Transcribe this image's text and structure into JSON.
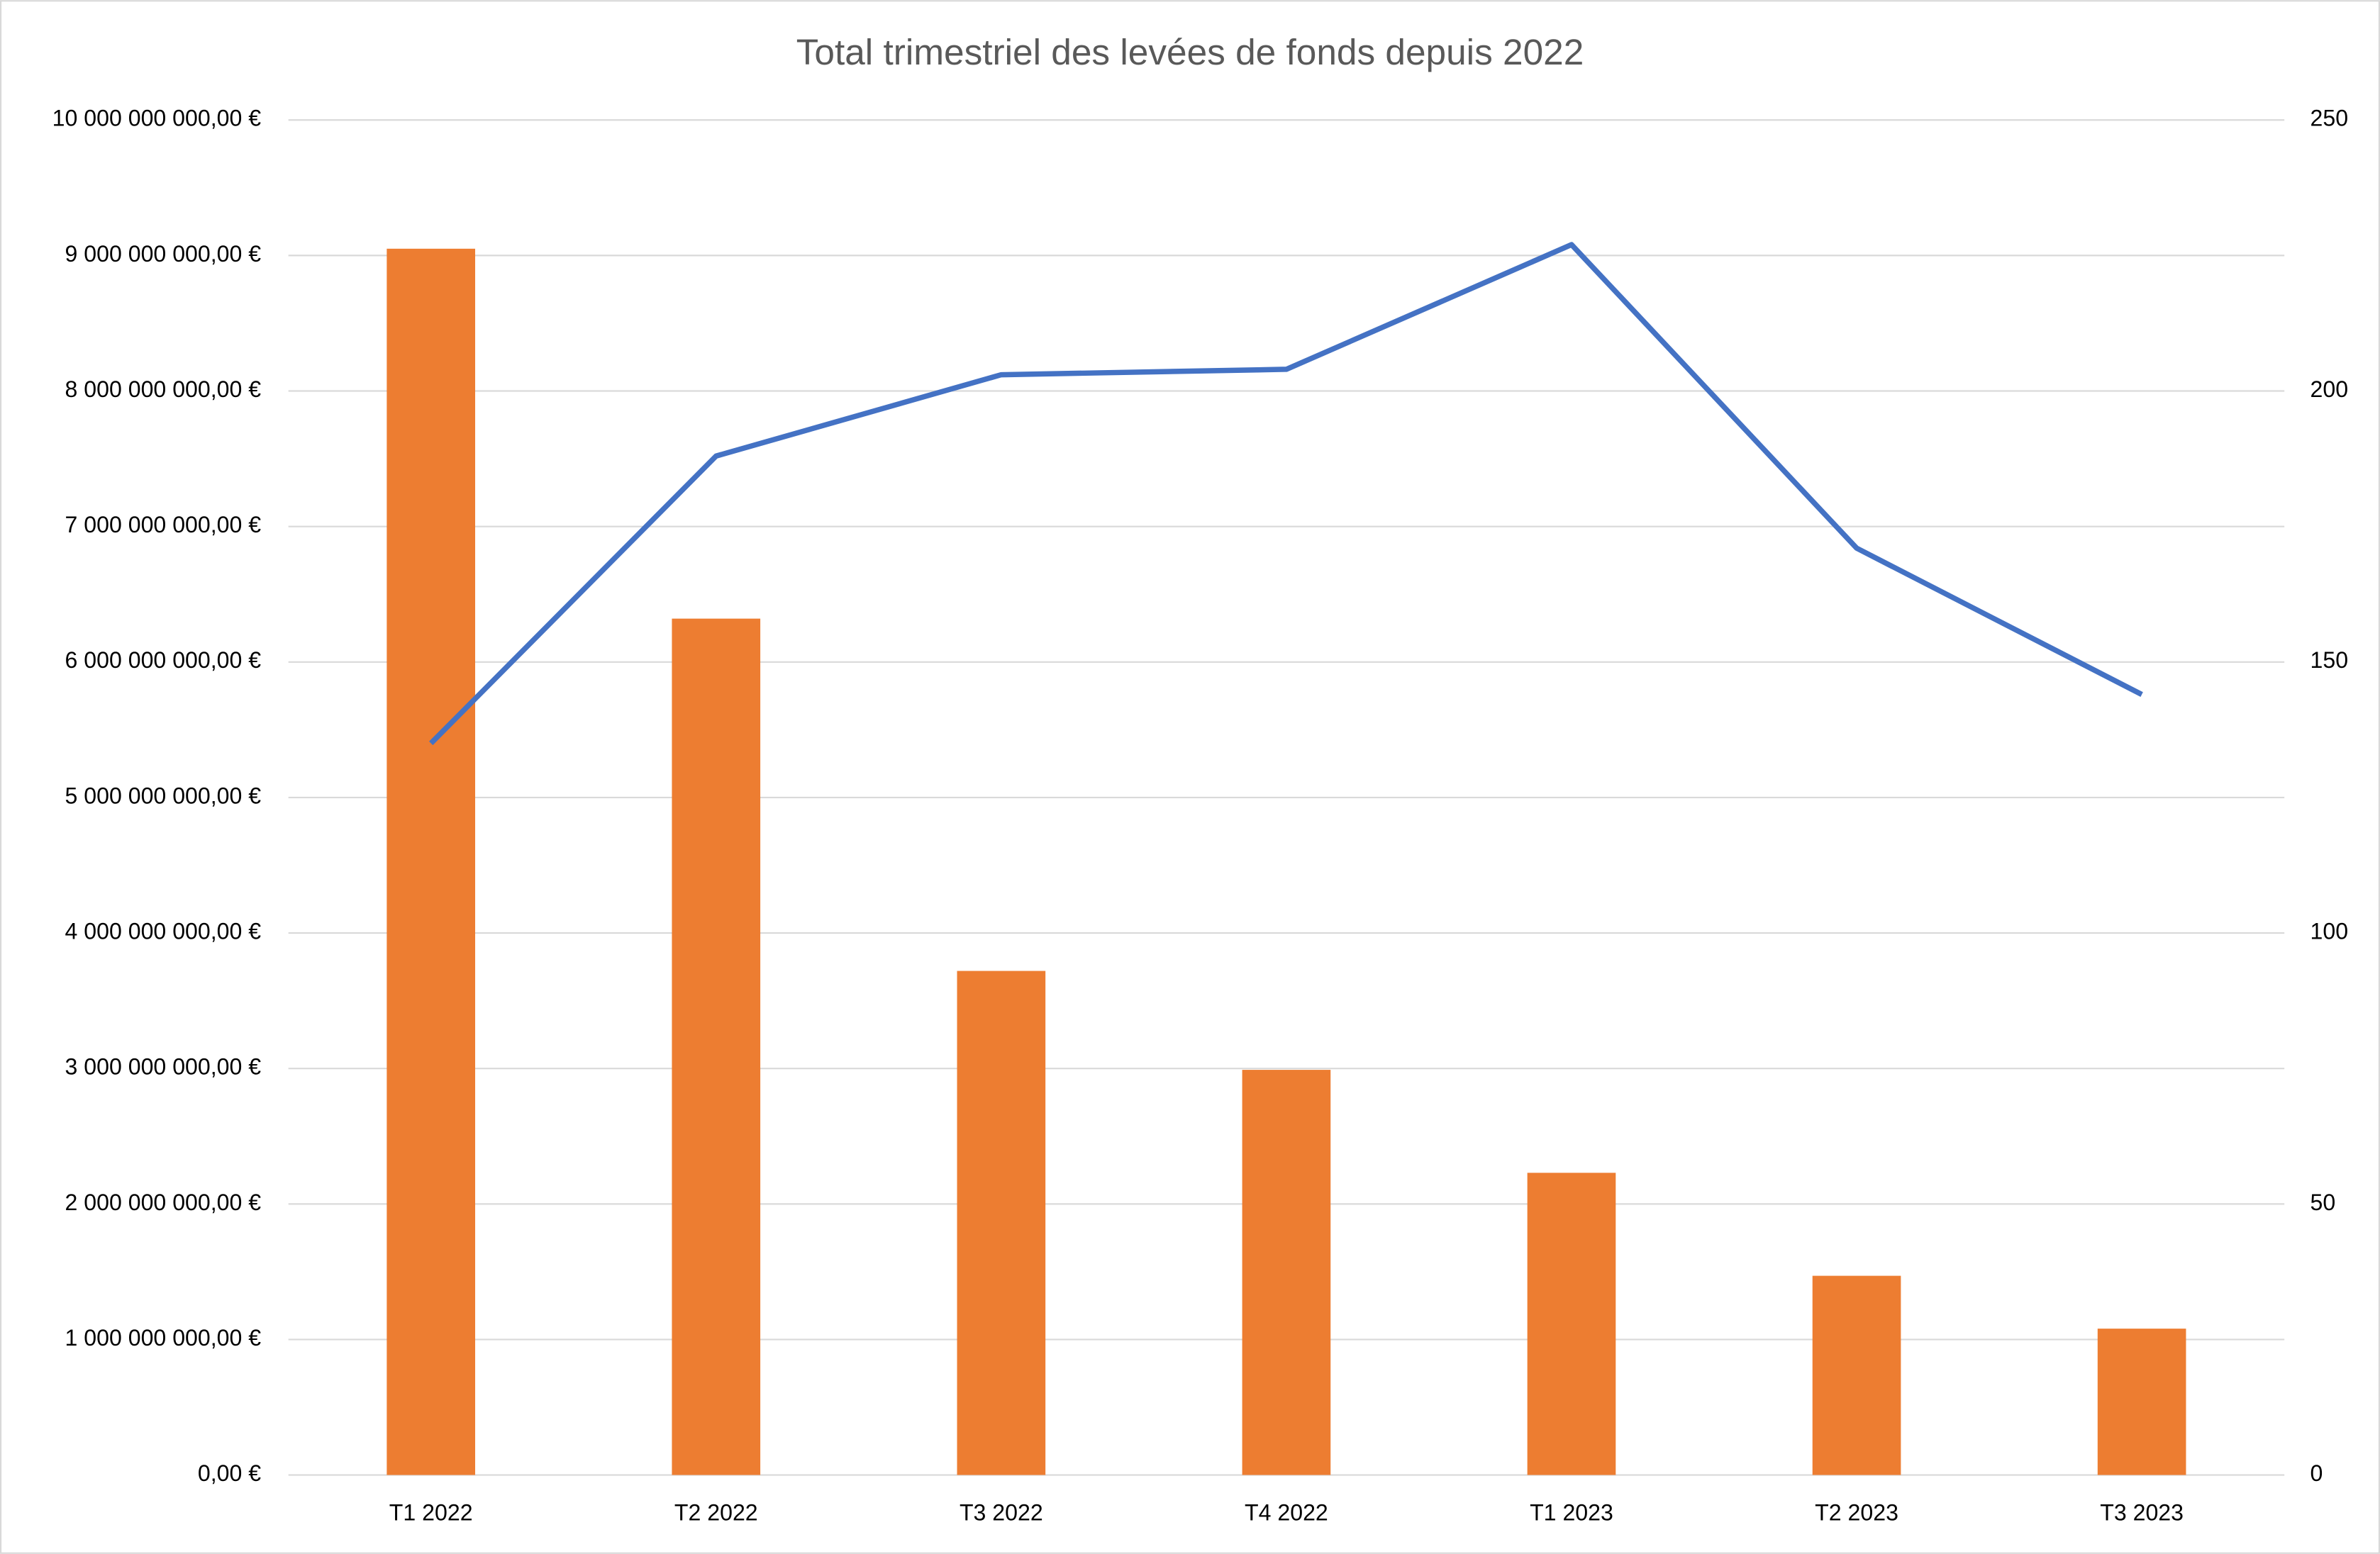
{
  "chart_data": {
    "type": "combo",
    "title": "Total trimestriel des levées de fonds depuis 2022",
    "categories": [
      "T1 2022",
      "T2 2022",
      "T3 2022",
      "T4 2022",
      "T1 2023",
      "T2 2023",
      "T3 2023"
    ],
    "series": [
      {
        "type": "bar",
        "color": "#ed7d31",
        "values": [
          9050000000,
          6320000000,
          3720000000,
          2990000000,
          2230000000,
          1470000000,
          1080000000
        ]
      },
      {
        "type": "line",
        "axis": "y2",
        "color": "#4472c4",
        "values": [
          135,
          188,
          203,
          204,
          227,
          171,
          144
        ]
      }
    ],
    "ylim": [
      0,
      10000000000
    ],
    "yticks": [
      {
        "value": 0,
        "label": "0,00 €"
      },
      {
        "value": 1000000000,
        "label": "1 000 000 000,00 €"
      },
      {
        "value": 2000000000,
        "label": "2 000 000 000,00 €"
      },
      {
        "value": 3000000000,
        "label": "3 000 000 000,00 €"
      },
      {
        "value": 4000000000,
        "label": "4 000 000 000,00 €"
      },
      {
        "value": 5000000000,
        "label": "5 000 000 000,00 €"
      },
      {
        "value": 6000000000,
        "label": "6 000 000 000,00 €"
      },
      {
        "value": 7000000000,
        "label": "7 000 000 000,00 €"
      },
      {
        "value": 8000000000,
        "label": "8 000 000 000,00 €"
      },
      {
        "value": 9000000000,
        "label": "9 000 000 000,00 €"
      },
      {
        "value": 10000000000,
        "label": "10 000 000 000,00 €"
      }
    ],
    "y2lim": [
      0,
      250
    ],
    "y2ticks": [
      0,
      50,
      100,
      150,
      200,
      250
    ],
    "grid": true
  }
}
